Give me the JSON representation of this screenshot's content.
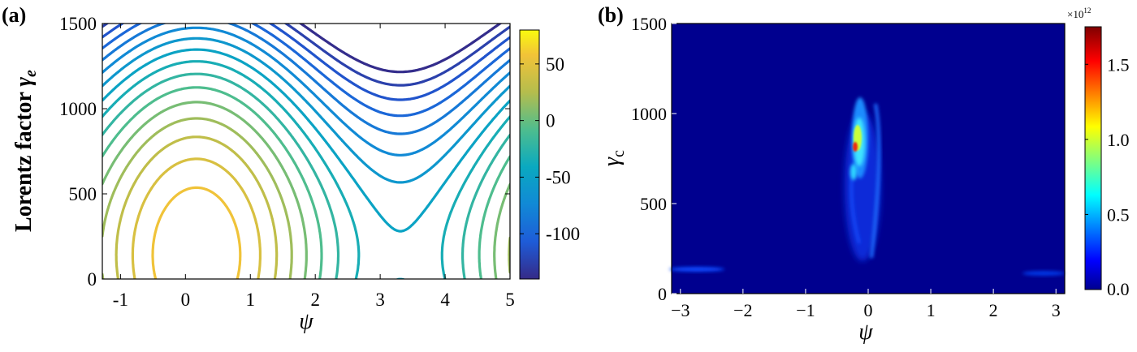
{
  "panels": {
    "a": {
      "label": "(a)"
    },
    "b": {
      "label": "(b)"
    }
  },
  "chart_data": [
    {
      "type": "contour",
      "panel": "(a)",
      "xlabel": "ψ",
      "ylabel": "Lorentz factor γe",
      "ylabel_main": "Lorentz factor",
      "ylabel_symbol": "γ",
      "ylabel_sub": "e",
      "xlim": [
        -1.28,
        5.0
      ],
      "ylim": [
        0,
        1500
      ],
      "xticks": [
        -1,
        0,
        1,
        2,
        3,
        4,
        5
      ],
      "yticks": [
        0,
        500,
        1000,
        1500
      ],
      "colorbar": {
        "ticks": [
          -100,
          -50,
          0,
          50
        ],
        "range": [
          -140,
          80
        ],
        "colormap": "parula"
      },
      "contour_levels": [
        70,
        57,
        44,
        31,
        18,
        5,
        -8,
        -21,
        -34,
        -47,
        -60,
        -73,
        -86,
        -99,
        -112,
        -125,
        -138
      ],
      "features": {
        "o_point": {
          "psi": 0.17,
          "gamma": 140
        },
        "x_point": {
          "psi": 3.0,
          "gamma": 130
        }
      }
    },
    {
      "type": "heatmap",
      "panel": "(b)",
      "xlabel": "ψ",
      "ylabel": "γc",
      "ylabel_symbol": "γ",
      "ylabel_sub": "c",
      "xlim": [
        -3.14,
        3.14
      ],
      "ylim": [
        0,
        1500
      ],
      "xticks": [
        -3,
        -2,
        -1,
        0,
        1,
        2,
        3
      ],
      "yticks": [
        0,
        500,
        1000,
        1500
      ],
      "colorbar": {
        "ticks": [
          0.0,
          0.5,
          1.0,
          1.5
        ],
        "tick_labels": [
          "0.0",
          "0.5",
          "1.0",
          "1.5"
        ],
        "exponent_label": "×10",
        "exponent_power": "12",
        "range": [
          0,
          1.75
        ],
        "colormap": "jet"
      },
      "features": {
        "peak": {
          "psi": -0.2,
          "gamma": 820,
          "value": 1.7
        },
        "band_psi_range": [
          -0.35,
          0.15
        ],
        "band_gamma_range": [
          200,
          1180
        ]
      },
      "colors": {
        "background": "#00008f"
      }
    }
  ]
}
